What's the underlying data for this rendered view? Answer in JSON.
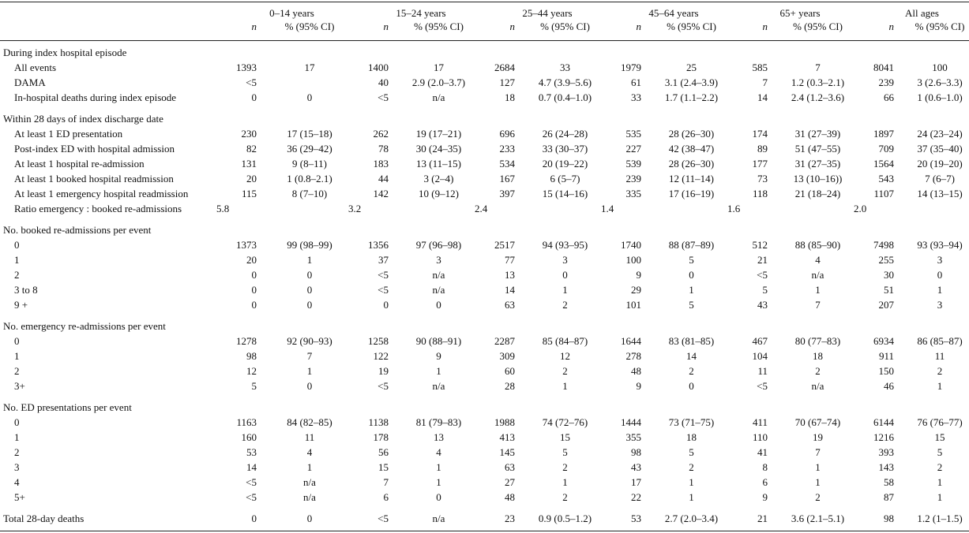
{
  "header": {
    "groups": [
      "0–14 years",
      "15–24 years",
      "25–44 years",
      "45–64 years",
      "65+ years",
      "All ages"
    ],
    "n_label": "n",
    "pct_label": "% (95% CI)"
  },
  "sections": [
    {
      "title": "During index hospital episode",
      "rows": [
        {
          "label": "All events",
          "cells": [
            "1393",
            "17",
            "1400",
            "17",
            "2684",
            "33",
            "1979",
            "25",
            "585",
            "7",
            "8041",
            "100"
          ]
        },
        {
          "label": "DAMA",
          "cells": [
            "<5",
            "",
            "40",
            "2.9 (2.0–3.7)",
            "127",
            "4.7 (3.9–5.6)",
            "61",
            "3.1 (2.4–3.9)",
            "7",
            "1.2 (0.3–2.1)",
            "239",
            "3 (2.6–3.3)"
          ]
        },
        {
          "label": "In-hospital deaths during index episode",
          "cells": [
            "0",
            "0",
            "<5",
            "n/a",
            "18",
            "0.7 (0.4–1.0)",
            "33",
            "1.7 (1.1–2.2)",
            "14",
            "2.4 (1.2–3.6)",
            "66",
            "1 (0.6–1.0)"
          ]
        }
      ]
    },
    {
      "title": "Within 28 days of index discharge date",
      "rows": [
        {
          "label": "At least 1 ED presentation",
          "cells": [
            "230",
            "17 (15–18)",
            "262",
            "19 (17–21)",
            "696",
            "26 (24–28)",
            "535",
            "28 (26–30)",
            "174",
            "31 (27–39)",
            "1897",
            "24 (23–24)"
          ]
        },
        {
          "label": "Post-index ED with hospital admission",
          "cells": [
            "82",
            "36 (29–42)",
            "78",
            "30 (24–35)",
            "233",
            "33 (30–37)",
            "227",
            "42 (38–47)",
            "89",
            "51 (47–55)",
            "709",
            "37 (35–40)"
          ]
        },
        {
          "label": "At least 1 hospital re-admission",
          "cells": [
            "131",
            "9 (8–11)",
            "183",
            "13 (11–15)",
            "534",
            "20 (19–22)",
            "539",
            "28 (26–30)",
            "177",
            "31 (27–35)",
            "1564",
            "20 (19–20)"
          ]
        },
        {
          "label": "At least 1 booked hospital readmission",
          "cells": [
            "20",
            "1 (0.8–2.1)",
            "44",
            "3 (2–4)",
            "167",
            "6 (5–7)",
            "239",
            "12 (11–14)",
            "73",
            "13 (10–16))",
            "543",
            "7 (6–7)"
          ]
        },
        {
          "label": "At least 1 emergency hospital readmission",
          "cells": [
            "115",
            "8 (7–10)",
            "142",
            "10 (9–12)",
            "397",
            "15 (14–16)",
            "335",
            "17 (16–19)",
            "118",
            "21 (18–24)",
            "1107",
            "14 (13–15)"
          ]
        }
      ],
      "ratio": {
        "label": "Ratio emergency : booked re-admissions",
        "values": [
          "5.8",
          "3.2",
          "2.4",
          "1.4",
          "1.6",
          "2.0"
        ]
      }
    },
    {
      "title": "No. booked re-admissions per event",
      "rows": [
        {
          "label": "0",
          "cells": [
            "1373",
            "99 (98–99)",
            "1356",
            "97 (96–98)",
            "2517",
            "94 (93–95)",
            "1740",
            "88 (87–89)",
            "512",
            "88 (85–90)",
            "7498",
            "93 (93–94)"
          ]
        },
        {
          "label": "1",
          "cells": [
            "20",
            "1",
            "37",
            "3",
            "77",
            "3",
            "100",
            "5",
            "21",
            "4",
            "255",
            "3"
          ]
        },
        {
          "label": "2",
          "cells": [
            "0",
            "0",
            "<5",
            "n/a",
            "13",
            "0",
            "9",
            "0",
            "<5",
            "n/a",
            "30",
            "0"
          ]
        },
        {
          "label": "3 to 8",
          "cells": [
            "0",
            "0",
            "<5",
            "n/a",
            "14",
            "1",
            "29",
            "1",
            "5",
            "1",
            "51",
            "1"
          ]
        },
        {
          "label": "9 +",
          "cells": [
            "0",
            "0",
            "0",
            "0",
            "63",
            "2",
            "101",
            "5",
            "43",
            "7",
            "207",
            "3"
          ]
        }
      ]
    },
    {
      "title": "No. emergency re-admissions per event",
      "rows": [
        {
          "label": "0",
          "cells": [
            "1278",
            "92 (90–93)",
            "1258",
            "90 (88–91)",
            "2287",
            "85 (84–87)",
            "1644",
            "83 (81–85)",
            "467",
            "80 (77–83)",
            "6934",
            "86 (85–87)"
          ]
        },
        {
          "label": "1",
          "cells": [
            "98",
            "7",
            "122",
            "9",
            "309",
            "12",
            "278",
            "14",
            "104",
            "18",
            "911",
            "11"
          ]
        },
        {
          "label": "2",
          "cells": [
            "12",
            "1",
            "19",
            "1",
            "60",
            "2",
            "48",
            "2",
            "11",
            "2",
            "150",
            "2"
          ]
        },
        {
          "label": "3+",
          "cells": [
            "5",
            "0",
            "<5",
            "n/a",
            "28",
            "1",
            "9",
            "0",
            "<5",
            "n/a",
            "46",
            "1"
          ]
        }
      ]
    },
    {
      "title": "No. ED presentations per event",
      "rows": [
        {
          "label": "0",
          "cells": [
            "1163",
            "84 (82–85)",
            "1138",
            "81 (79–83)",
            "1988",
            "74 (72–76)",
            "1444",
            "73 (71–75)",
            "411",
            "70 (67–74)",
            "6144",
            "76 (76–77)"
          ]
        },
        {
          "label": "1",
          "cells": [
            "160",
            "11",
            "178",
            "13",
            "413",
            "15",
            "355",
            "18",
            "110",
            "19",
            "1216",
            "15"
          ]
        },
        {
          "label": "2",
          "cells": [
            "53",
            "4",
            "56",
            "4",
            "145",
            "5",
            "98",
            "5",
            "41",
            "7",
            "393",
            "5"
          ]
        },
        {
          "label": "3",
          "cells": [
            "14",
            "1",
            "15",
            "1",
            "63",
            "2",
            "43",
            "2",
            "8",
            "1",
            "143",
            "2"
          ]
        },
        {
          "label": "4",
          "cells": [
            "<5",
            "n/a",
            "7",
            "1",
            "27",
            "1",
            "17",
            "1",
            "6",
            "1",
            "58",
            "1"
          ]
        },
        {
          "label": "5+",
          "cells": [
            "<5",
            "n/a",
            "6",
            "0",
            "48",
            "2",
            "22",
            "1",
            "9",
            "2",
            "87",
            "1"
          ]
        }
      ]
    }
  ],
  "total": {
    "label": "Total 28-day deaths",
    "cells": [
      "0",
      "0",
      "<5",
      "n/a",
      "23",
      "0.9 (0.5–1.2)",
      "53",
      "2.7 (2.0–3.4)",
      "21",
      "3.6 (2.1–5.1)",
      "98",
      "1.2 (1–1.5)"
    ]
  }
}
